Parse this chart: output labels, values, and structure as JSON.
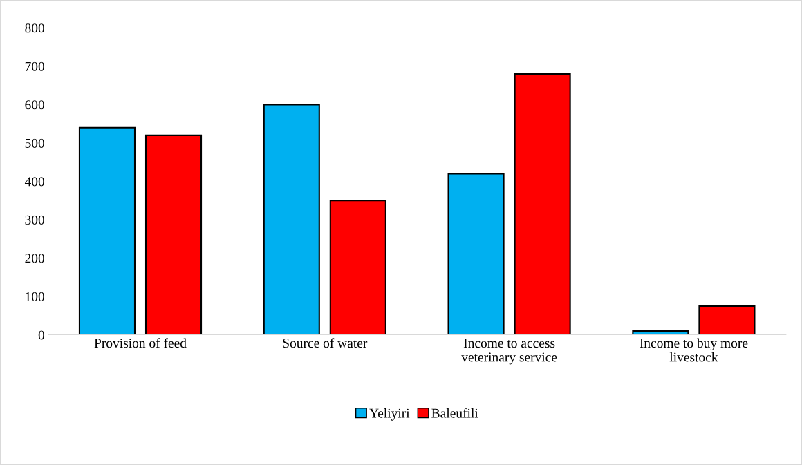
{
  "chart_data": {
    "type": "bar",
    "categories": [
      "Provision of feed",
      "Source of water",
      "Income to access veterinary service",
      "Income to buy more livestock"
    ],
    "series": [
      {
        "name": "Yeliyiri",
        "color": "#00b0f0",
        "values": [
          540,
          600,
          420,
          10
        ]
      },
      {
        "name": "Baleufili",
        "color": "#ff0000",
        "values": [
          520,
          350,
          680,
          75
        ]
      }
    ],
    "ylim": [
      0,
      800
    ],
    "yticks": [
      0,
      100,
      200,
      300,
      400,
      500,
      600,
      700,
      800
    ],
    "grid": false,
    "legend": "bottom"
  }
}
